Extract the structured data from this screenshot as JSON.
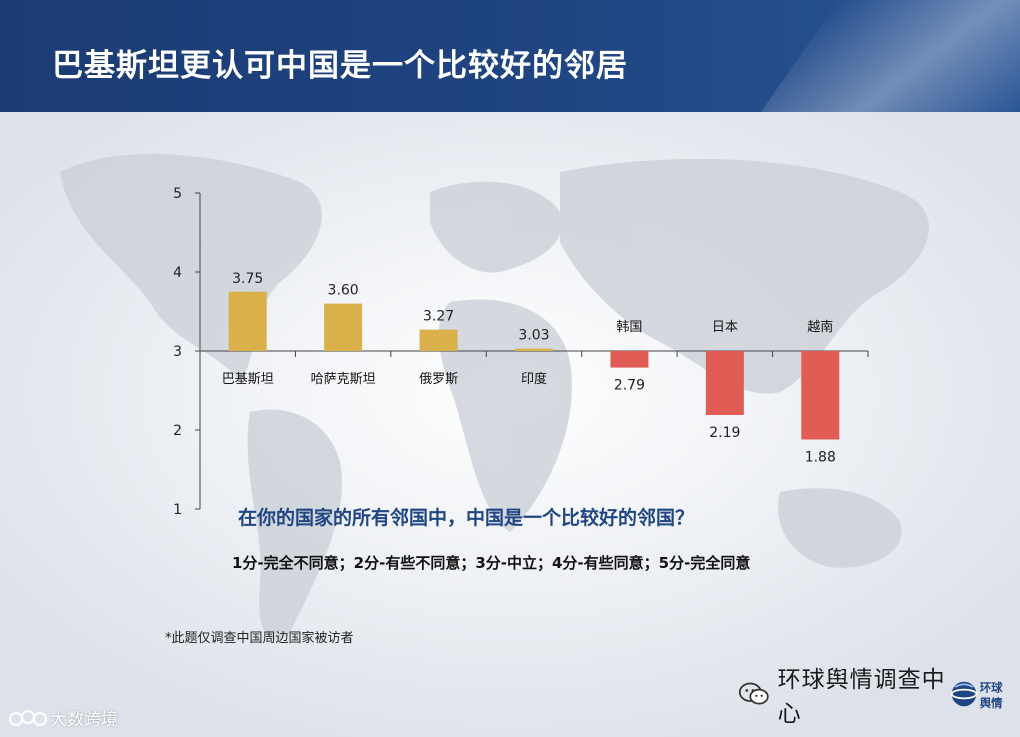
{
  "header": {
    "title": "巴基斯坦更认可中国是一个比较好的邻居"
  },
  "chart_data": {
    "type": "bar",
    "baseline": 3,
    "ylim": [
      1,
      5
    ],
    "yticks": [
      1,
      2,
      3,
      4,
      5
    ],
    "categories": [
      "巴基斯坦",
      "哈萨克斯坦",
      "俄罗斯",
      "印度",
      "韩国",
      "日本",
      "越南"
    ],
    "values": [
      3.75,
      3.6,
      3.27,
      3.03,
      2.79,
      2.19,
      1.88
    ],
    "value_labels": [
      "3.75",
      "3.60",
      "3.27",
      "3.03",
      "2.79",
      "2.19",
      "1.88"
    ],
    "colors": {
      "positive": "#dab04b",
      "negative": "#e05c54"
    },
    "grid": false
  },
  "question": "在你的国家的所有邻国中，中国是一个比较好的邻国？",
  "scale_note": "1分-完全不同意；2分-有些不同意；3分-中立；4分-有些同意；5分-完全同意",
  "footnote": "*此题仅调查中国周边国家被访者",
  "brand": {
    "text": "环球舆情调查中心",
    "logo_text": "环球舆情",
    "icon": "wechat-icon"
  },
  "watermark": {
    "text": "大数跨境",
    "icon": "watermark-logo-icon"
  }
}
